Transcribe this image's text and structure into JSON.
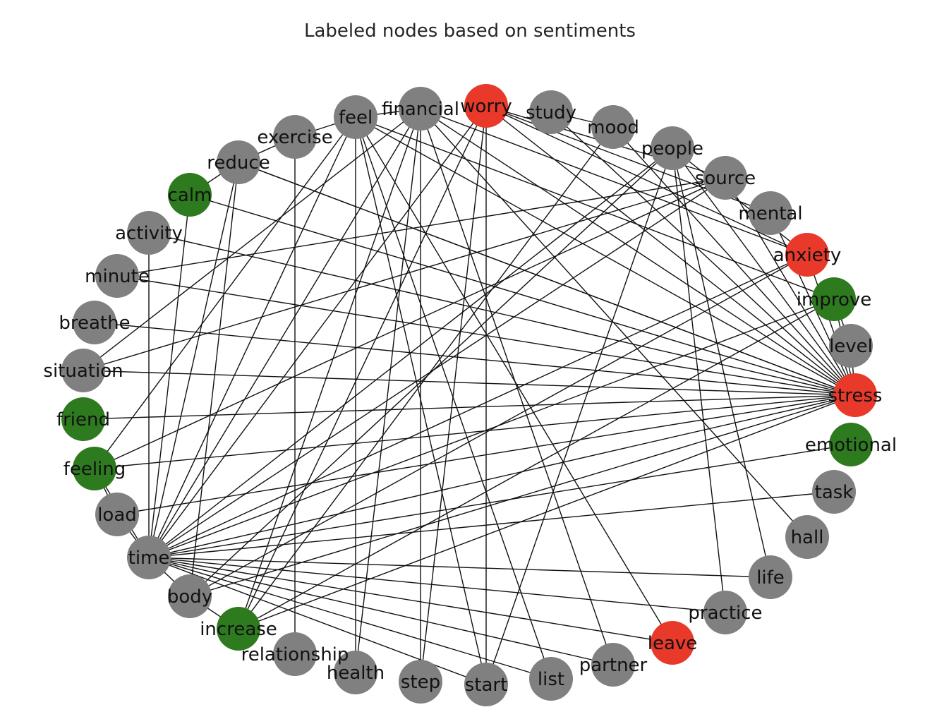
{
  "title": "Labeled nodes based on sentiments",
  "colors": {
    "neutral": "#808080",
    "negative": "#e8392a",
    "positive": "#2e7a1f",
    "edge": "#111111"
  },
  "nodes": [
    {
      "id": "feel",
      "sentiment": "neutral"
    },
    {
      "id": "financial",
      "sentiment": "neutral"
    },
    {
      "id": "worry",
      "sentiment": "negative"
    },
    {
      "id": "study",
      "sentiment": "neutral"
    },
    {
      "id": "mood",
      "sentiment": "neutral"
    },
    {
      "id": "people",
      "sentiment": "neutral"
    },
    {
      "id": "source",
      "sentiment": "neutral"
    },
    {
      "id": "mental",
      "sentiment": "neutral"
    },
    {
      "id": "anxiety",
      "sentiment": "negative"
    },
    {
      "id": "improve",
      "sentiment": "positive"
    },
    {
      "id": "level",
      "sentiment": "neutral"
    },
    {
      "id": "stress",
      "sentiment": "negative"
    },
    {
      "id": "emotional",
      "sentiment": "positive"
    },
    {
      "id": "task",
      "sentiment": "neutral"
    },
    {
      "id": "hall",
      "sentiment": "neutral"
    },
    {
      "id": "life",
      "sentiment": "neutral"
    },
    {
      "id": "practice",
      "sentiment": "neutral"
    },
    {
      "id": "leave",
      "sentiment": "negative"
    },
    {
      "id": "partner",
      "sentiment": "neutral"
    },
    {
      "id": "list",
      "sentiment": "neutral"
    },
    {
      "id": "start",
      "sentiment": "neutral"
    },
    {
      "id": "step",
      "sentiment": "neutral"
    },
    {
      "id": "health",
      "sentiment": "neutral"
    },
    {
      "id": "relationship",
      "sentiment": "neutral"
    },
    {
      "id": "increase",
      "sentiment": "positive"
    },
    {
      "id": "body",
      "sentiment": "neutral"
    },
    {
      "id": "time",
      "sentiment": "neutral"
    },
    {
      "id": "load",
      "sentiment": "neutral"
    },
    {
      "id": "feeling",
      "sentiment": "positive"
    },
    {
      "id": "friend",
      "sentiment": "positive"
    },
    {
      "id": "situation",
      "sentiment": "neutral"
    },
    {
      "id": "breathe",
      "sentiment": "neutral"
    },
    {
      "id": "minute",
      "sentiment": "neutral"
    },
    {
      "id": "activity",
      "sentiment": "neutral"
    },
    {
      "id": "calm",
      "sentiment": "positive"
    },
    {
      "id": "reduce",
      "sentiment": "neutral"
    },
    {
      "id": "exercise",
      "sentiment": "neutral"
    }
  ],
  "edges": [
    [
      "stress",
      "feel"
    ],
    [
      "stress",
      "financial"
    ],
    [
      "stress",
      "worry"
    ],
    [
      "stress",
      "study"
    ],
    [
      "stress",
      "mood"
    ],
    [
      "stress",
      "people"
    ],
    [
      "stress",
      "source"
    ],
    [
      "stress",
      "mental"
    ],
    [
      "stress",
      "anxiety"
    ],
    [
      "stress",
      "improve"
    ],
    [
      "stress",
      "level"
    ],
    [
      "stress",
      "reduce"
    ],
    [
      "stress",
      "calm"
    ],
    [
      "stress",
      "activity"
    ],
    [
      "stress",
      "minute"
    ],
    [
      "stress",
      "breathe"
    ],
    [
      "stress",
      "situation"
    ],
    [
      "stress",
      "friend"
    ],
    [
      "stress",
      "feeling"
    ],
    [
      "stress",
      "load"
    ],
    [
      "stress",
      "time"
    ],
    [
      "stress",
      "body"
    ],
    [
      "stress",
      "increase"
    ],
    [
      "time",
      "feel"
    ],
    [
      "time",
      "financial"
    ],
    [
      "time",
      "worry"
    ],
    [
      "time",
      "people"
    ],
    [
      "time",
      "source"
    ],
    [
      "time",
      "anxiety"
    ],
    [
      "time",
      "improve"
    ],
    [
      "time",
      "emotional"
    ],
    [
      "time",
      "task"
    ],
    [
      "time",
      "life"
    ],
    [
      "time",
      "practice"
    ],
    [
      "time",
      "leave"
    ],
    [
      "time",
      "partner"
    ],
    [
      "time",
      "list"
    ],
    [
      "time",
      "start"
    ],
    [
      "time",
      "activity"
    ],
    [
      "time",
      "reduce"
    ],
    [
      "time",
      "calm"
    ],
    [
      "time",
      "load"
    ],
    [
      "time",
      "feeling"
    ],
    [
      "time",
      "body"
    ],
    [
      "feel",
      "exercise"
    ],
    [
      "feel",
      "financial"
    ],
    [
      "feel",
      "leave"
    ],
    [
      "feel",
      "list"
    ],
    [
      "feel",
      "start"
    ],
    [
      "feel",
      "health"
    ],
    [
      "feel",
      "feeling"
    ],
    [
      "feel",
      "improve"
    ],
    [
      "financial",
      "step"
    ],
    [
      "financial",
      "health"
    ],
    [
      "financial",
      "partner"
    ],
    [
      "financial",
      "hall"
    ],
    [
      "financial",
      "situation"
    ],
    [
      "financial",
      "increase"
    ],
    [
      "financial",
      "anxiety"
    ],
    [
      "worry",
      "start"
    ],
    [
      "worry",
      "step"
    ],
    [
      "worry",
      "increase"
    ],
    [
      "worry",
      "source"
    ],
    [
      "worry",
      "anxiety"
    ],
    [
      "people",
      "life"
    ],
    [
      "people",
      "practice"
    ],
    [
      "people",
      "start"
    ],
    [
      "people",
      "anxiety"
    ],
    [
      "people",
      "body"
    ],
    [
      "mood",
      "increase"
    ],
    [
      "source",
      "minute"
    ],
    [
      "source",
      "feeling"
    ],
    [
      "source",
      "situation"
    ],
    [
      "reduce",
      "exercise"
    ],
    [
      "reduce",
      "body"
    ],
    [
      "reduce",
      "stress"
    ],
    [
      "calm",
      "reduce"
    ],
    [
      "exercise",
      "relationship"
    ],
    [
      "anxiety",
      "body"
    ],
    [
      "improve",
      "increase"
    ],
    [
      "level",
      "improve"
    ],
    [
      "feeling",
      "load"
    ],
    [
      "body",
      "increase"
    ],
    [
      "study",
      "mood"
    ],
    [
      "mental",
      "worry"
    ]
  ]
}
